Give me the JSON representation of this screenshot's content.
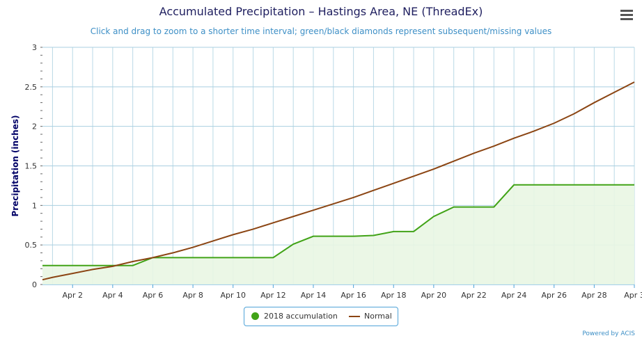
{
  "title": "Accumulated Precipitation – Hastings Area, NE (ThreadEx)",
  "subtitle": "Click and drag to zoom to a shorter time interval; green/black diamonds represent subsequent/missing values",
  "menu_icon": "hamburger-menu-icon",
  "credits": "Powered by ACIS",
  "colors": {
    "accumulation": "#41a317",
    "accumulation_fill": "#e9f6e3",
    "normal": "#8b4513",
    "grid": "#a9cfe0"
  },
  "chart_data": {
    "type": "line",
    "ylabel": "Precipitation (inches)",
    "xlabel": "",
    "ylim": [
      0,
      3
    ],
    "yticks": [
      "0",
      "0.5",
      "1",
      "1.5",
      "2",
      "2.5",
      "3"
    ],
    "x_domain_days": [
      0.5,
      30.0
    ],
    "x_ticks": [
      {
        "day": 2,
        "label": "Apr 2"
      },
      {
        "day": 4,
        "label": "Apr 4"
      },
      {
        "day": 6,
        "label": "Apr 6"
      },
      {
        "day": 8,
        "label": "Apr 8"
      },
      {
        "day": 10,
        "label": "Apr 10"
      },
      {
        "day": 12,
        "label": "Apr 12"
      },
      {
        "day": 14,
        "label": "Apr 14"
      },
      {
        "day": 16,
        "label": "Apr 16"
      },
      {
        "day": 18,
        "label": "Apr 18"
      },
      {
        "day": 20,
        "label": "Apr 20"
      },
      {
        "day": 22,
        "label": "Apr 22"
      },
      {
        "day": 24,
        "label": "Apr 24"
      },
      {
        "day": 26,
        "label": "Apr 26"
      },
      {
        "day": 28,
        "label": "Apr 28"
      },
      {
        "day": 30,
        "label": "Apr 3"
      }
    ],
    "grid": true,
    "legend": "bottom-center",
    "series": [
      {
        "name": "2018 accumulation",
        "days": [
          0.5,
          1,
          2,
          3,
          4,
          5,
          6,
          7,
          8,
          9,
          10,
          11,
          12,
          13,
          14,
          15,
          16,
          17,
          18,
          19,
          20,
          21,
          22,
          23,
          24,
          25,
          26,
          27,
          28,
          29,
          30
        ],
        "values": [
          0.24,
          0.24,
          0.24,
          0.24,
          0.24,
          0.24,
          0.34,
          0.34,
          0.34,
          0.34,
          0.34,
          0.34,
          0.34,
          0.51,
          0.61,
          0.61,
          0.61,
          0.62,
          0.67,
          0.67,
          0.86,
          0.98,
          0.98,
          0.98,
          1.26,
          1.26,
          1.26,
          1.26,
          1.26,
          1.26,
          1.26
        ]
      },
      {
        "name": "Normal",
        "days": [
          0.5,
          1,
          2,
          3,
          4,
          5,
          6,
          7,
          8,
          9,
          10,
          11,
          12,
          13,
          14,
          15,
          16,
          17,
          18,
          19,
          20,
          21,
          22,
          23,
          24,
          25,
          26,
          27,
          28,
          29,
          30
        ],
        "values": [
          0.06,
          0.09,
          0.14,
          0.19,
          0.23,
          0.29,
          0.34,
          0.4,
          0.47,
          0.55,
          0.63,
          0.7,
          0.78,
          0.86,
          0.94,
          1.02,
          1.1,
          1.19,
          1.28,
          1.37,
          1.46,
          1.56,
          1.66,
          1.75,
          1.85,
          1.94,
          2.04,
          2.16,
          2.3,
          2.43,
          2.56
        ]
      }
    ]
  }
}
